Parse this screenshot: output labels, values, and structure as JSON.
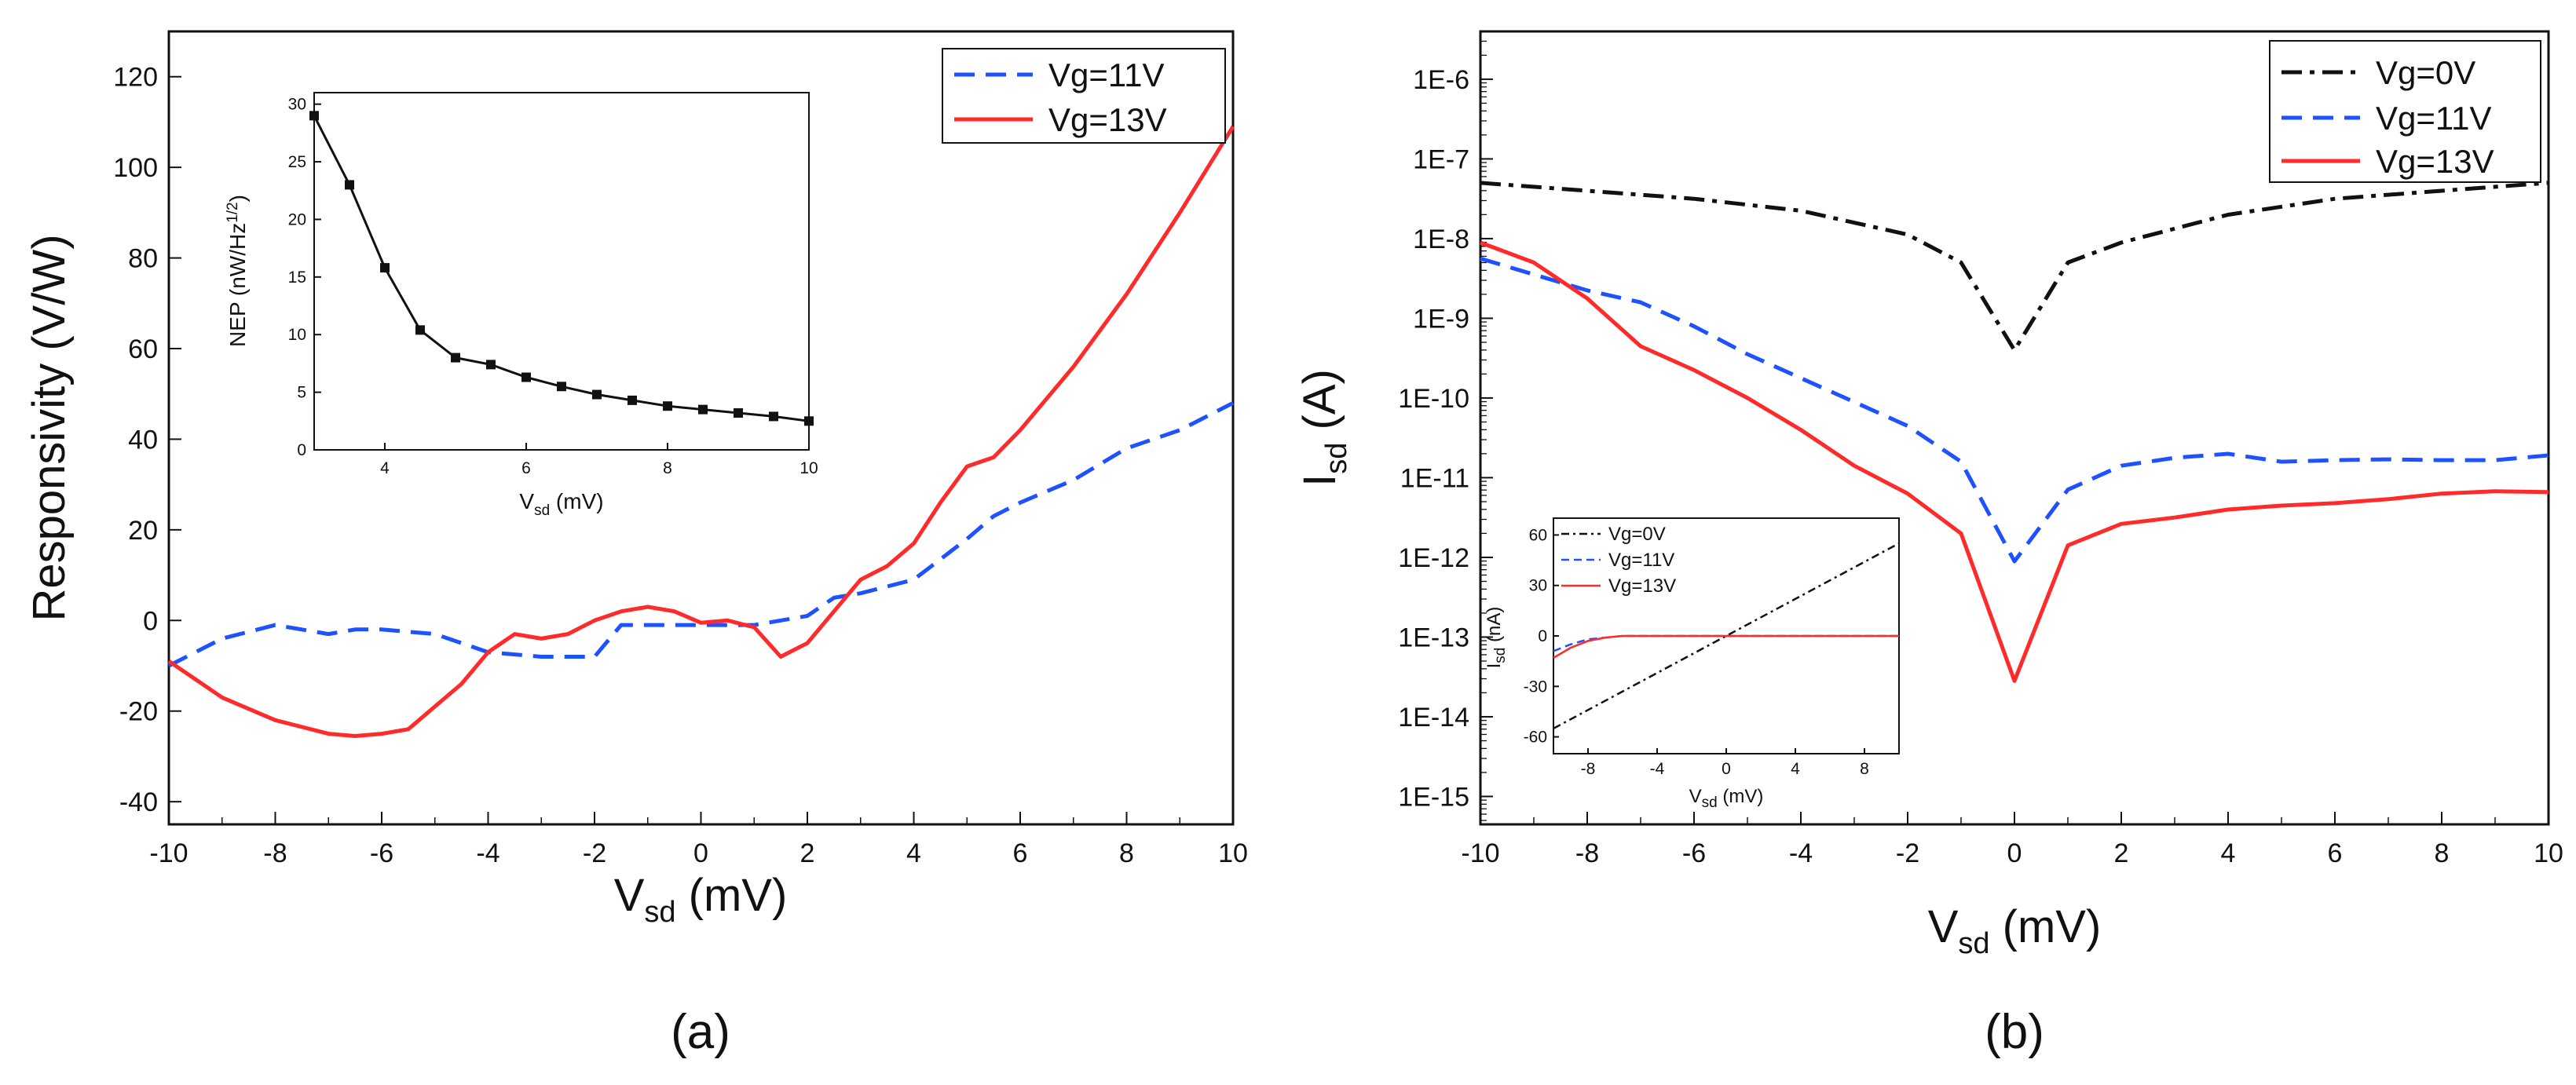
{
  "colors": {
    "black": "#111111",
    "blue": "#1f52ff",
    "red": "#ff2a2a"
  },
  "chart_data": [
    {
      "type": "line",
      "panel_label": "(a)",
      "xlabel_main": "V",
      "xlabel_sub": "sd",
      "xlabel_unit": " (mV)",
      "ylabel": "Responsivity (V/W)",
      "xlim": [
        -10,
        10
      ],
      "ylim": [
        -45,
        130
      ],
      "xticks": [
        "-10",
        "-8",
        "-6",
        "-4",
        "-2",
        "0",
        "2",
        "4",
        "6",
        "8",
        "10"
      ],
      "xtick_values": [
        -10,
        -8,
        -6,
        -4,
        -2,
        0,
        2,
        4,
        6,
        8,
        10
      ],
      "yticks": [
        "-40",
        "-20",
        "0",
        "20",
        "40",
        "60",
        "80",
        "100",
        "120"
      ],
      "ytick_values": [
        -40,
        -20,
        0,
        20,
        40,
        60,
        80,
        100,
        120
      ],
      "legend_position": "top-right",
      "series": [
        {
          "name": "Vg=11V",
          "color": "blue",
          "dash": "dash",
          "x": [
            -10,
            -9,
            -8,
            -7,
            -6.5,
            -6,
            -5,
            -4,
            -3.5,
            -3,
            -2,
            -1.5,
            -1,
            0,
            0.5,
            1,
            2,
            2.5,
            3,
            4,
            5,
            5.5,
            6,
            7,
            8,
            9,
            10
          ],
          "y": [
            -10,
            -4,
            -1,
            -3,
            -2,
            -2,
            -3,
            -7,
            -7.5,
            -8,
            -8,
            -1,
            -1,
            -1,
            -1,
            -1,
            1,
            5,
            6,
            9,
            18,
            23,
            26,
            31,
            38,
            42,
            48
          ]
        },
        {
          "name": "Vg=13V",
          "color": "red",
          "dash": "solid",
          "x": [
            -10,
            -9,
            -8,
            -7,
            -6.5,
            -6,
            -5.5,
            -5,
            -4.5,
            -4,
            -3.5,
            -3,
            -2.5,
            -2,
            -1.5,
            -1,
            -0.5,
            0,
            0.5,
            1,
            1.5,
            2,
            2.5,
            3,
            3.5,
            4,
            4.5,
            5,
            5.5,
            6,
            7,
            8,
            9,
            10
          ],
          "y": [
            -9,
            -17,
            -22,
            -25,
            -25.5,
            -25,
            -24,
            -19,
            -14,
            -7,
            -3,
            -4,
            -3,
            0,
            2,
            3,
            2,
            -0.5,
            0,
            -1.5,
            -8,
            -5,
            2,
            9,
            12,
            17,
            26,
            34,
            36,
            42,
            56,
            72,
            90,
            109
          ]
        }
      ],
      "inset": {
        "type": "line",
        "xlabel_main": "V",
        "xlabel_sub": "sd",
        "xlabel_unit": " (mV)",
        "ylabel_main": "NEP (nW/Hz",
        "ylabel_sup": "1/2",
        "ylabel_end": ")",
        "xlim": [
          3,
          10
        ],
        "ylim": [
          0,
          31
        ],
        "xticks": [
          "4",
          "6",
          "8",
          "10"
        ],
        "xtick_values": [
          4,
          6,
          8,
          10
        ],
        "yticks": [
          "0",
          "5",
          "10",
          "15",
          "20",
          "25",
          "30"
        ],
        "ytick_values": [
          0,
          5,
          10,
          15,
          20,
          25,
          30
        ],
        "x": [
          3,
          3.5,
          4,
          4.5,
          5,
          5.5,
          6,
          6.5,
          7,
          7.5,
          8,
          8.5,
          9,
          9.5,
          10
        ],
        "y": [
          29,
          23,
          15.8,
          10.4,
          8,
          7.4,
          6.3,
          5.5,
          4.8,
          4.3,
          3.8,
          3.5,
          3.2,
          2.9,
          2.5
        ]
      }
    },
    {
      "type": "line",
      "yscale": "log",
      "panel_label": "(b)",
      "xlabel_main": "V",
      "xlabel_sub": "sd",
      "xlabel_unit": " (mV)",
      "ylabel_main": "I",
      "ylabel_sub": "sd",
      "ylabel_unit": " (A)",
      "xlim": [
        -10,
        10
      ],
      "ylim_log10": [
        -15.35,
        -5.4
      ],
      "xticks": [
        "-10",
        "-8",
        "-6",
        "-4",
        "-2",
        "0",
        "2",
        "4",
        "6",
        "8",
        "10"
      ],
      "xtick_values": [
        -10,
        -8,
        -6,
        -4,
        -2,
        0,
        2,
        4,
        6,
        8,
        10
      ],
      "yticks": [
        "1E-15",
        "1E-14",
        "1E-13",
        "1E-12",
        "1E-11",
        "1E-10",
        "1E-9",
        "1E-8",
        "1E-7",
        "1E-6"
      ],
      "ytick_log10": [
        -15,
        -14,
        -13,
        -12,
        -11,
        -10,
        -9,
        -8,
        -7,
        -6
      ],
      "legend_position": "top-right",
      "series": [
        {
          "name": "Vg=0V",
          "color": "black",
          "dash": "dashdot",
          "x": [
            -10,
            -8,
            -6,
            -4,
            -2,
            -1,
            0,
            1,
            2,
            4,
            6,
            8,
            10
          ],
          "log10y": [
            -7.3,
            -7.4,
            -7.5,
            -7.65,
            -7.95,
            -8.3,
            -9.4,
            -8.3,
            -8.05,
            -7.7,
            -7.5,
            -7.4,
            -7.3
          ]
        },
        {
          "name": "Vg=11V",
          "color": "blue",
          "dash": "dash",
          "x": [
            -10,
            -9,
            -8,
            -7,
            -6,
            -5,
            -4,
            -3,
            -2,
            -1,
            0,
            1,
            2,
            3,
            4,
            5,
            6,
            7,
            8,
            9,
            10
          ],
          "log10y": [
            -8.25,
            -8.45,
            -8.65,
            -8.8,
            -9.1,
            -9.45,
            -9.75,
            -10.05,
            -10.35,
            -10.8,
            -12.05,
            -11.15,
            -10.85,
            -10.75,
            -10.7,
            -10.8,
            -10.78,
            -10.77,
            -10.78,
            -10.78,
            -10.72
          ]
        },
        {
          "name": "Vg=13V",
          "color": "red",
          "dash": "solid",
          "x": [
            -10,
            -9,
            -8,
            -7,
            -6,
            -5,
            -4,
            -3,
            -2,
            -1,
            0,
            1,
            2,
            3,
            4,
            5,
            6,
            7,
            8,
            9,
            10
          ],
          "log10y": [
            -8.05,
            -8.3,
            -8.75,
            -9.35,
            -9.65,
            -10,
            -10.4,
            -10.85,
            -11.2,
            -11.7,
            -13.55,
            -11.85,
            -11.58,
            -11.5,
            -11.4,
            -11.35,
            -11.32,
            -11.27,
            -11.2,
            -11.17,
            -11.18
          ]
        }
      ],
      "inset": {
        "type": "line",
        "xlabel_main": "V",
        "xlabel_sub": "sd",
        "xlabel_unit": " (mV)",
        "ylabel_main": "I",
        "ylabel_sub": "sd",
        "ylabel_unit": " (nA)",
        "xlim": [
          -10,
          10
        ],
        "ylim": [
          -70,
          70
        ],
        "xticks": [
          "-8",
          "-4",
          "0",
          "4",
          "8"
        ],
        "xtick_values": [
          -8,
          -4,
          0,
          4,
          8
        ],
        "yticks": [
          "-60",
          "-30",
          "0",
          "30",
          "60"
        ],
        "ytick_values": [
          -60,
          -30,
          0,
          30,
          60
        ],
        "series": [
          {
            "name": "Vg=0V",
            "color": "black",
            "dash": "dashdot",
            "x": [
              -10,
              10
            ],
            "y": [
              -55,
              55
            ]
          },
          {
            "name": "Vg=11V",
            "color": "blue",
            "dash": "dash",
            "x": [
              -10,
              -9,
              -8,
              -7,
              -6,
              10
            ],
            "y": [
              -9,
              -5,
              -2,
              -1,
              0,
              0
            ]
          },
          {
            "name": "Vg=13V",
            "color": "red",
            "dash": "solid",
            "x": [
              -10,
              -9,
              -8,
              -7,
              -6,
              10
            ],
            "y": [
              -13,
              -7,
              -3,
              -1,
              0,
              0
            ]
          }
        ]
      }
    }
  ]
}
